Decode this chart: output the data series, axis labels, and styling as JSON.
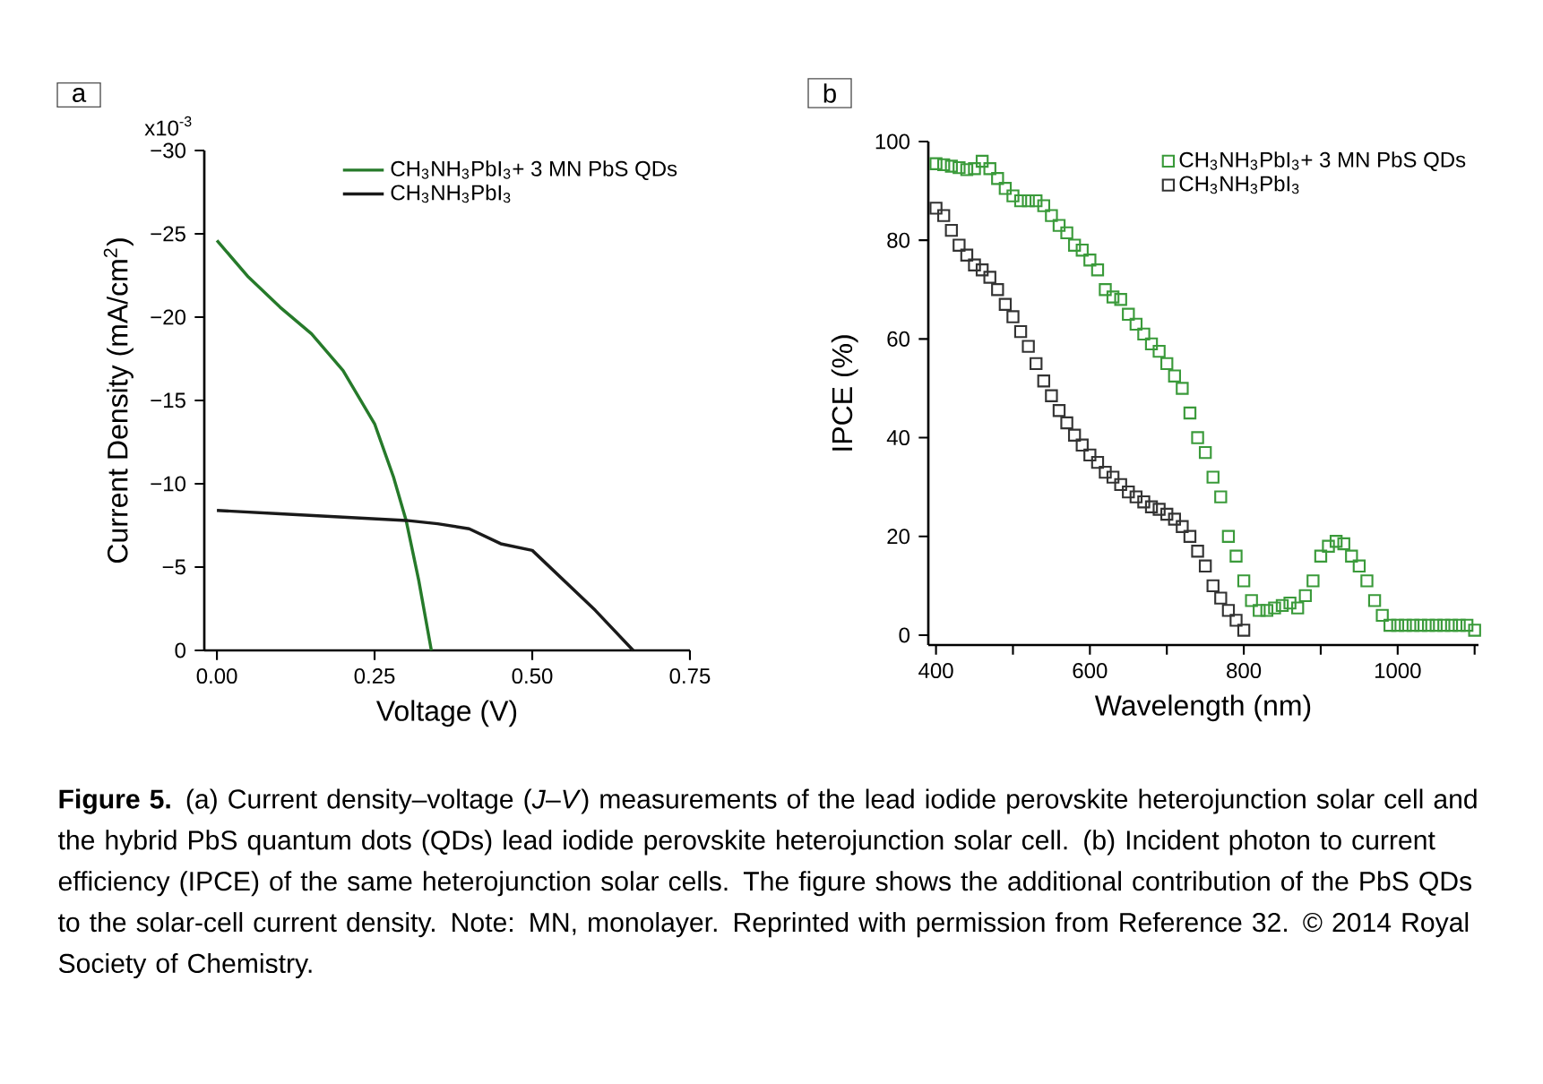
{
  "chart_data": [
    {
      "type": "line",
      "title": "a",
      "xlabel": "Voltage (V)",
      "ylabel": "Current Density (mA/cm$^{2}$)",
      "x": [
        0,
        0.05,
        0.1,
        0.15,
        0.2,
        0.25,
        0.28,
        0.3,
        0.32,
        0.34
      ],
      "series": [
        {
          "name": "CH$_{3}$NH$_{3}$PbI$_{3}$+ 3 MN PbS QDs",
          "color": "#267a2a",
          "values": [
            -24.6,
            -22.4,
            -20.6,
            -19.0,
            -16.8,
            -13.6,
            -10.4,
            -7.8,
            -4.2,
            0
          ]
        },
        {
          "name": "CH$_{3}$NH$_{3}$PbI$_{3}$",
          "color": "#1a1a1a",
          "x": [
            0,
            0.1,
            0.2,
            0.3,
            0.35,
            0.4,
            0.45,
            0.5,
            0.55,
            0.6,
            0.66
          ],
          "values": [
            -8.4,
            -8.2,
            -8.0,
            -7.8,
            -7.6,
            -7.3,
            -6.4,
            -6.0,
            -4.2,
            -2.4,
            0
          ]
        }
      ],
      "xlim": [
        -0.02,
        0.75
      ],
      "ylim": [
        0,
        -30
      ],
      "xticks": [
        {
          "value": 0,
          "label": "0.00"
        },
        {
          "value": 0.25,
          "label": "0.25"
        },
        {
          "value": 0.5,
          "label": "0.50"
        },
        {
          "value": 0.75,
          "label": "0.75"
        }
      ],
      "yticks": [
        {
          "value": -30,
          "label": "−30"
        },
        {
          "value": -25,
          "label": "−25"
        },
        {
          "value": -20,
          "label": "−20"
        },
        {
          "value": -15,
          "label": "−15"
        },
        {
          "value": -10,
          "label": "−10"
        },
        {
          "value": -5,
          "label": "−5"
        },
        0
      ],
      "annotations": [
        "x10$^{-3}$"
      ],
      "legend": "top right",
      "grid": false
    },
    {
      "type": "scatter",
      "title": "b",
      "xlabel": "Wavelength (nm)",
      "ylabel": "IPCE (%)",
      "marker": "square",
      "x": [
        400,
        410,
        420,
        430,
        440,
        450,
        460,
        470,
        480,
        490,
        500,
        510,
        520,
        530,
        540,
        550,
        560,
        570,
        580,
        590,
        600,
        610,
        620,
        630,
        640,
        650,
        660,
        670,
        680,
        690,
        700,
        710,
        720,
        730,
        740,
        750,
        760,
        770,
        780,
        790,
        800,
        810,
        820,
        830,
        840,
        850,
        860,
        870,
        880,
        890,
        900,
        910,
        920,
        930,
        940,
        950,
        960,
        970,
        980,
        990,
        1000,
        1010,
        1020,
        1030,
        1040,
        1050,
        1060,
        1070,
        1080,
        1090,
        1100
      ],
      "series": [
        {
          "name": "CH$_{3}$NH$_{3}$PbI$_{3}$+ 3 MN PbS QDs",
          "color": "#3a9a3a",
          "values": [
            95.5,
            95.3,
            95,
            94.7,
            94.3,
            94.5,
            96,
            94.5,
            92.5,
            90.5,
            89,
            88,
            88,
            88,
            87,
            85,
            83,
            81.5,
            79,
            78,
            76,
            74,
            70,
            68.5,
            68,
            65,
            63,
            61,
            59,
            57.5,
            55,
            52.5,
            50,
            45,
            40,
            37,
            32,
            28,
            20,
            16,
            11,
            7,
            5,
            5,
            5.5,
            6,
            6.5,
            5.5,
            8,
            11,
            16,
            18,
            19,
            18.5,
            16,
            14,
            11,
            7,
            4,
            2,
            2,
            2,
            2,
            2,
            2,
            2,
            2,
            2,
            2,
            2,
            1
          ]
        },
        {
          "name": "CH$_{3}$NH$_{3}$PbI$_{3}$",
          "color": "#333333",
          "x": [
            400,
            410,
            420,
            430,
            440,
            450,
            460,
            470,
            480,
            490,
            500,
            510,
            520,
            530,
            540,
            550,
            560,
            570,
            580,
            590,
            600,
            610,
            620,
            630,
            640,
            650,
            660,
            670,
            680,
            690,
            700,
            710,
            720,
            730,
            740,
            750,
            760,
            770,
            780,
            790,
            800
          ],
          "values": [
            86.5,
            85,
            82,
            79,
            77,
            75,
            74,
            72.5,
            70,
            67,
            64.5,
            61.5,
            58.5,
            55,
            51.5,
            48.5,
            45.5,
            43,
            40.5,
            38.5,
            36.5,
            35,
            33,
            32,
            30.5,
            29,
            28,
            27,
            26,
            25.5,
            24.5,
            23.5,
            22,
            20,
            17,
            14,
            10,
            7.5,
            5,
            3,
            1
          ]
        }
      ],
      "xlim": [
        390,
        1105
      ],
      "ylim": [
        -2,
        100
      ],
      "xticks": [
        400,
        {
          "value": 500,
          "label": null
        },
        600,
        {
          "value": 700,
          "label": null
        },
        800,
        {
          "value": 900,
          "label": null
        },
        1000,
        {
          "value": 1100,
          "label": null
        }
      ],
      "yticks": [
        0,
        20,
        40,
        60,
        80,
        100
      ],
      "legend": "top right",
      "grid": false,
      "annotations": [
        "**Figure 5.** (a) Current density–voltage (*J*–*V*) measurements of the lead iodide perovskite heterojunction solar cell and the hybrid PbS quantum dots (QDs) lead iodide perovskite heterojunction solar cell. (b) Incident photon to current efficiency (IPCE) of the same heterojunction solar cells. The figure shows the additional contribution of the PbS QDs to the solar-cell current density. Note: MN, monolayer. Reprinted with permission from Reference 32. © 2014 Royal Society of Chemistry."
      ]
    }
  ]
}
